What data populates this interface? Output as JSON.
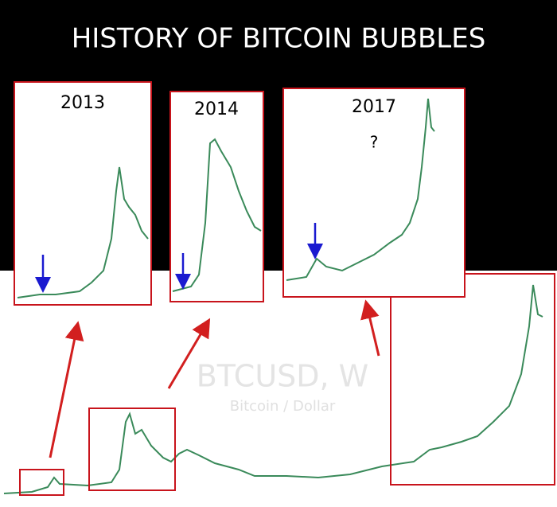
{
  "title": "HISTORY OF BITCOIN BUBBLES",
  "main_chart": {
    "symbol": "BTCUSD, W",
    "description": "Bitcoin / Dollar"
  },
  "insets": [
    {
      "label": "2013"
    },
    {
      "label": "2014"
    },
    {
      "label": "2017",
      "note": "?"
    }
  ]
}
